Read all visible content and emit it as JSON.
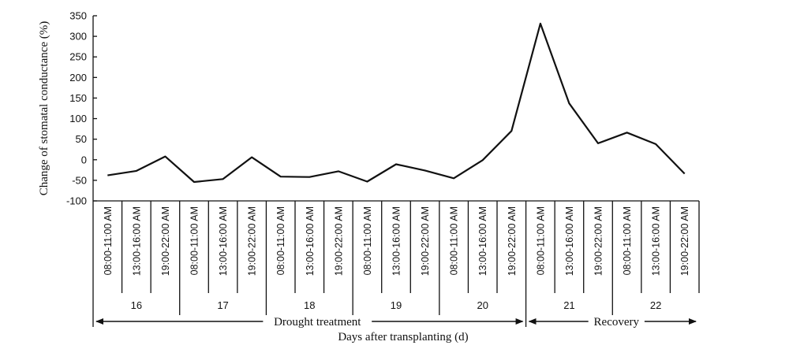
{
  "chart_data": {
    "type": "line",
    "ylabel": "Change of stomatal conductance (%)",
    "xlabel": "Days after transplanting (d)",
    "ylim": [
      -100,
      350
    ],
    "yticks": [
      -100,
      -50,
      0,
      50,
      100,
      150,
      200,
      250,
      300,
      350
    ],
    "grid": false,
    "time_slots": [
      "08:00-11:00 AM",
      "13:00-16:00 AM",
      "19:00-22:00 AM"
    ],
    "days": [
      "16",
      "17",
      "18",
      "19",
      "20",
      "21",
      "22"
    ],
    "phases": [
      {
        "label": "Drought treatment",
        "start_day_index": 0,
        "end_day_index": 4
      },
      {
        "label": "Recovery",
        "start_day_index": 5,
        "end_day_index": 6
      }
    ],
    "series": [
      {
        "values": [
          -38,
          -27,
          8,
          -54,
          -47,
          6,
          -41,
          -42,
          -28,
          -53,
          -11,
          -26,
          -45,
          -1,
          70,
          331,
          137,
          40,
          66,
          38,
          -34
        ]
      }
    ]
  }
}
